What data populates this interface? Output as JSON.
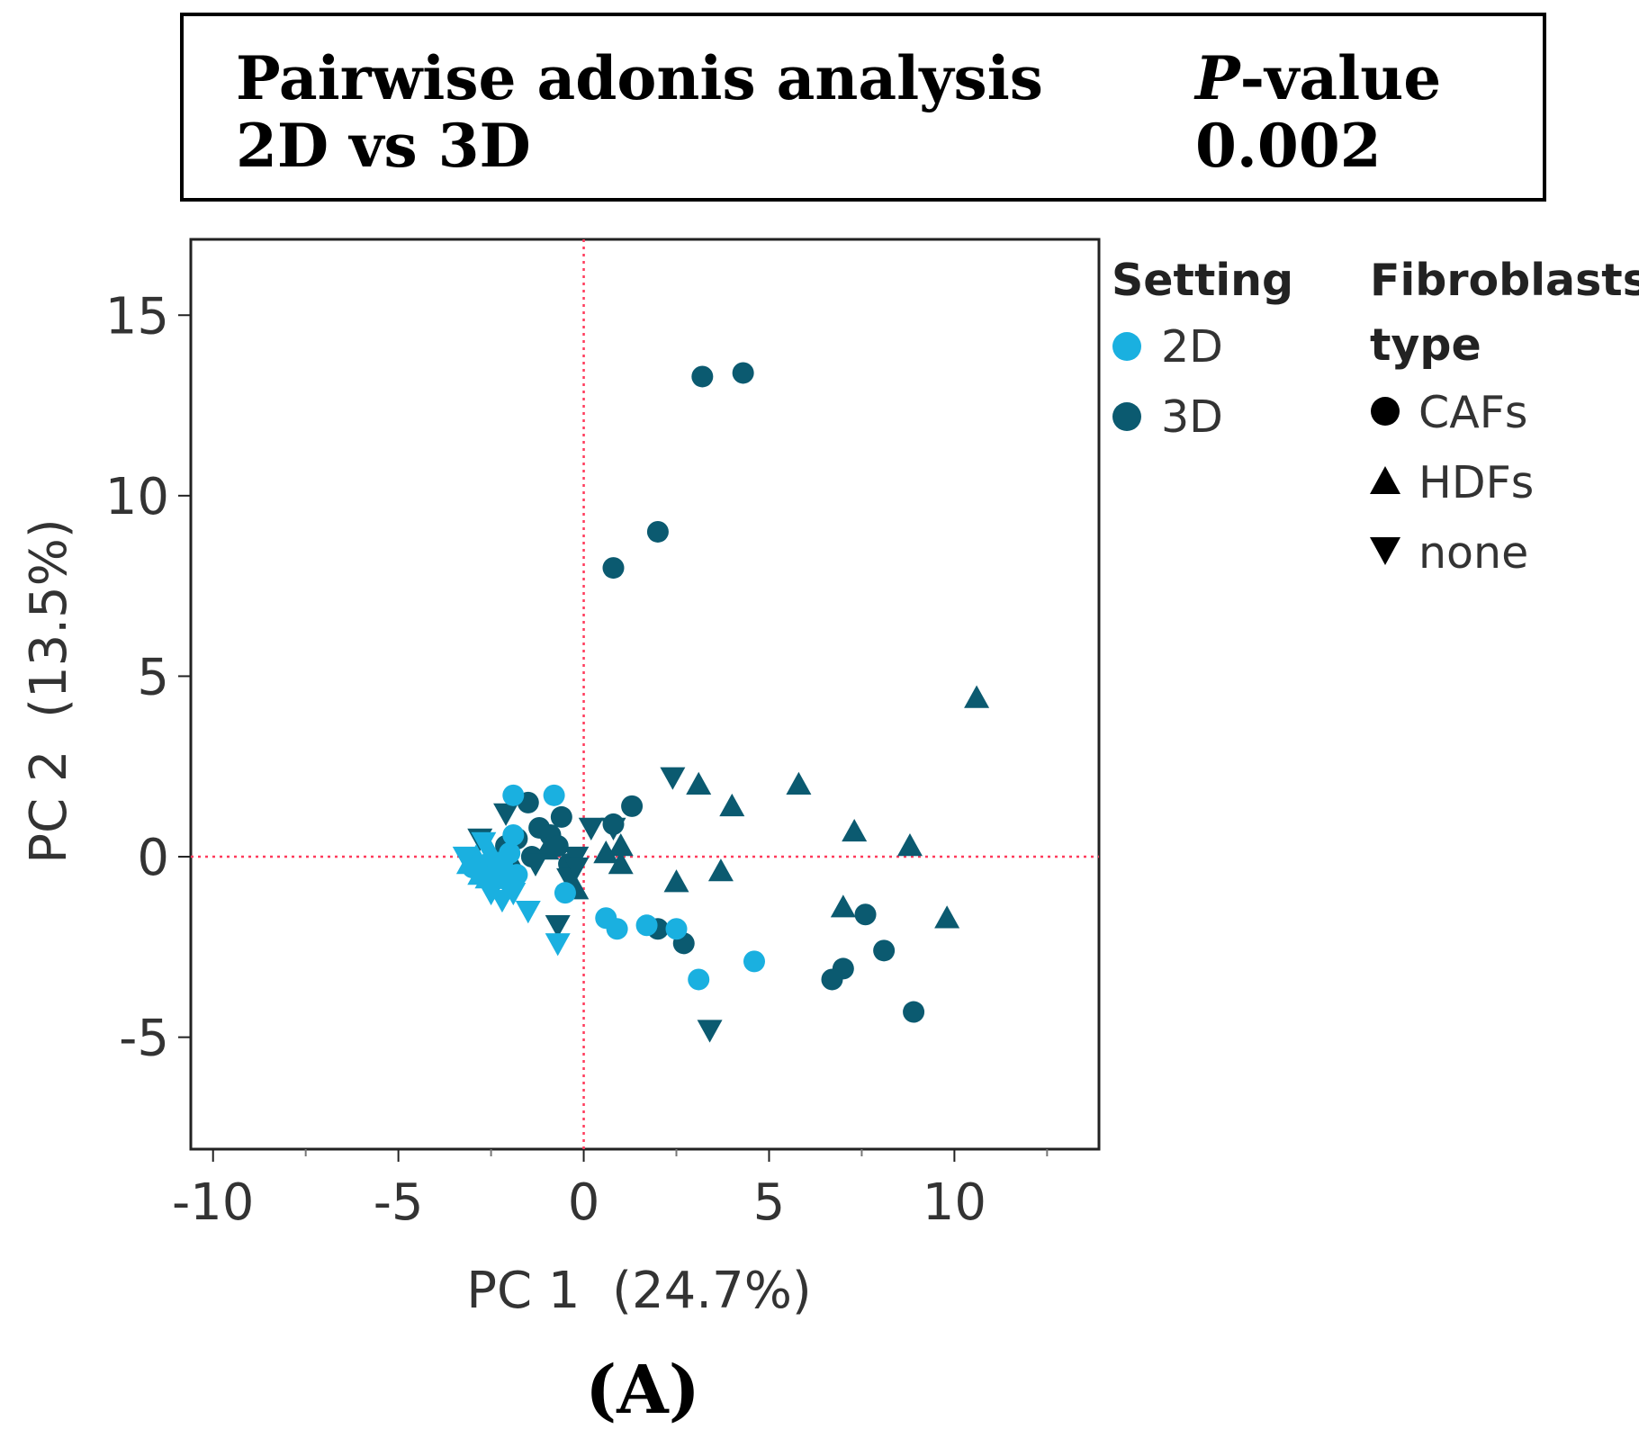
{
  "stats_box": {
    "title": "Pairwise adonis analysis",
    "comparison": "2D vs 3D",
    "pvalue_label_italic": "P",
    "pvalue_label_rest": "-value",
    "pvalue": "0.002"
  },
  "panel_label": "(A)",
  "chart_data": {
    "type": "scatter",
    "xlabel": "PC 1  (24.7%)",
    "ylabel": "PC 2  (13.5%)",
    "xlim": [
      -10.6,
      13.9
    ],
    "ylim": [
      -8.1,
      17.1
    ],
    "xticks": [
      -10,
      -5,
      0,
      5,
      10
    ],
    "xtick_labels": [
      "-10",
      "-5",
      "0",
      "5",
      "10"
    ],
    "xminor_ticks": [
      -7.5,
      -2.5,
      2.5,
      7.5,
      12.5
    ],
    "yticks": [
      15,
      10,
      5,
      0,
      -5
    ],
    "ytick_labels": [
      "15",
      "10",
      "5",
      "0",
      "-5"
    ],
    "reference_lines": {
      "x": 0,
      "y": 0,
      "color": "#ff3b5c",
      "style": "dotted"
    },
    "legend_position": "right",
    "legend": {
      "color_title": "Setting",
      "color_entries": [
        {
          "label": "2D",
          "color": "#1ab0e0"
        },
        {
          "label": "3D",
          "color": "#0b5a70"
        }
      ],
      "shape_title_line1": "Fibroblasts",
      "shape_title_line2": "type",
      "shape_entries": [
        {
          "label": "CAFs",
          "shape": "circle"
        },
        {
          "label": "HDFs",
          "shape": "triangle-up"
        },
        {
          "label": "none",
          "shape": "triangle-down"
        }
      ]
    },
    "series": [
      {
        "name": "3D CAFs",
        "setting": "3D",
        "fibroblasts": "CAFs",
        "shape": "circle",
        "color": "#0b5a70",
        "points": [
          [
            3.2,
            13.3
          ],
          [
            4.3,
            13.4
          ],
          [
            2.0,
            9.0
          ],
          [
            0.8,
            8.0
          ],
          [
            -1.5,
            1.5
          ],
          [
            -0.6,
            1.1
          ],
          [
            1.3,
            1.4
          ],
          [
            -1.2,
            0.8
          ],
          [
            -0.9,
            0.6
          ],
          [
            -1.8,
            0.5
          ],
          [
            -2.1,
            0.3
          ],
          [
            0.8,
            0.9
          ],
          [
            2.0,
            -2.0
          ],
          [
            2.7,
            -2.4
          ],
          [
            7.6,
            -1.6
          ],
          [
            8.1,
            -2.6
          ],
          [
            7.0,
            -3.1
          ],
          [
            6.7,
            -3.4
          ],
          [
            8.9,
            -4.3
          ],
          [
            -0.4,
            -0.2
          ],
          [
            -0.7,
            0.3
          ],
          [
            -1.4,
            0.0
          ]
        ]
      },
      {
        "name": "3D HDFs",
        "setting": "3D",
        "fibroblasts": "HDFs",
        "shape": "triangle-up",
        "color": "#0b5a70",
        "points": [
          [
            10.6,
            4.4
          ],
          [
            3.1,
            2.0
          ],
          [
            4.0,
            1.4
          ],
          [
            5.8,
            2.0
          ],
          [
            7.3,
            0.7
          ],
          [
            8.8,
            0.3
          ],
          [
            3.7,
            -0.4
          ],
          [
            2.5,
            -0.7
          ],
          [
            1.0,
            -0.2
          ],
          [
            1.0,
            0.3
          ],
          [
            0.6,
            0.1
          ],
          [
            7.0,
            -1.4
          ],
          [
            9.8,
            -1.7
          ],
          [
            -0.2,
            -0.9
          ],
          [
            -1.0,
            0.2
          ],
          [
            -1.9,
            -0.2
          ]
        ]
      },
      {
        "name": "3D none",
        "setting": "3D",
        "fibroblasts": "none",
        "shape": "triangle-down",
        "color": "#0b5a70",
        "points": [
          [
            2.4,
            2.2
          ],
          [
            0.2,
            0.8
          ],
          [
            0.8,
            0.8
          ],
          [
            -0.2,
            0.0
          ],
          [
            -0.4,
            -0.6
          ],
          [
            -0.2,
            -0.3
          ],
          [
            -1.3,
            -0.2
          ],
          [
            3.4,
            -4.8
          ],
          [
            -0.7,
            -1.9
          ],
          [
            -2.1,
            1.2
          ],
          [
            -2.8,
            0.5
          ]
        ]
      },
      {
        "name": "2D CAFs",
        "setting": "2D",
        "fibroblasts": "CAFs",
        "shape": "circle",
        "color": "#1ab0e0",
        "points": [
          [
            -1.9,
            1.7
          ],
          [
            -0.8,
            1.7
          ],
          [
            0.6,
            -1.7
          ],
          [
            0.9,
            -2.0
          ],
          [
            1.7,
            -1.9
          ],
          [
            2.5,
            -2.0
          ],
          [
            3.1,
            -3.4
          ],
          [
            4.6,
            -2.9
          ],
          [
            -0.5,
            -1.0
          ],
          [
            -1.9,
            0.6
          ],
          [
            -2.0,
            0.1
          ],
          [
            -2.2,
            -0.2
          ],
          [
            -2.4,
            -0.4
          ],
          [
            -2.6,
            -0.2
          ],
          [
            -2.8,
            -0.4
          ],
          [
            -3.0,
            -0.3
          ],
          [
            -2.3,
            -0.6
          ],
          [
            -1.8,
            -0.5
          ],
          [
            -2.0,
            -0.7
          ]
        ]
      },
      {
        "name": "2D HDFs",
        "setting": "2D",
        "fibroblasts": "HDFs",
        "shape": "triangle-up",
        "color": "#1ab0e0",
        "points": [
          [
            -3.1,
            -0.2
          ],
          [
            -2.9,
            0.0
          ],
          [
            -2.7,
            -0.3
          ],
          [
            -2.5,
            0.1
          ],
          [
            -2.3,
            -0.2
          ],
          [
            -2.6,
            -0.6
          ],
          [
            -2.1,
            -0.5
          ],
          [
            -2.8,
            -0.5
          ]
        ]
      },
      {
        "name": "2D none",
        "setting": "2D",
        "fibroblasts": "none",
        "shape": "triangle-down",
        "color": "#1ab0e0",
        "points": [
          [
            -1.5,
            -1.5
          ],
          [
            -0.7,
            -2.4
          ],
          [
            -1.9,
            -1.0
          ],
          [
            -2.4,
            -0.8
          ],
          [
            -2.7,
            0.4
          ],
          [
            -3.2,
            0.0
          ],
          [
            -2.5,
            -1.0
          ],
          [
            -2.2,
            -1.2
          ]
        ]
      }
    ]
  }
}
